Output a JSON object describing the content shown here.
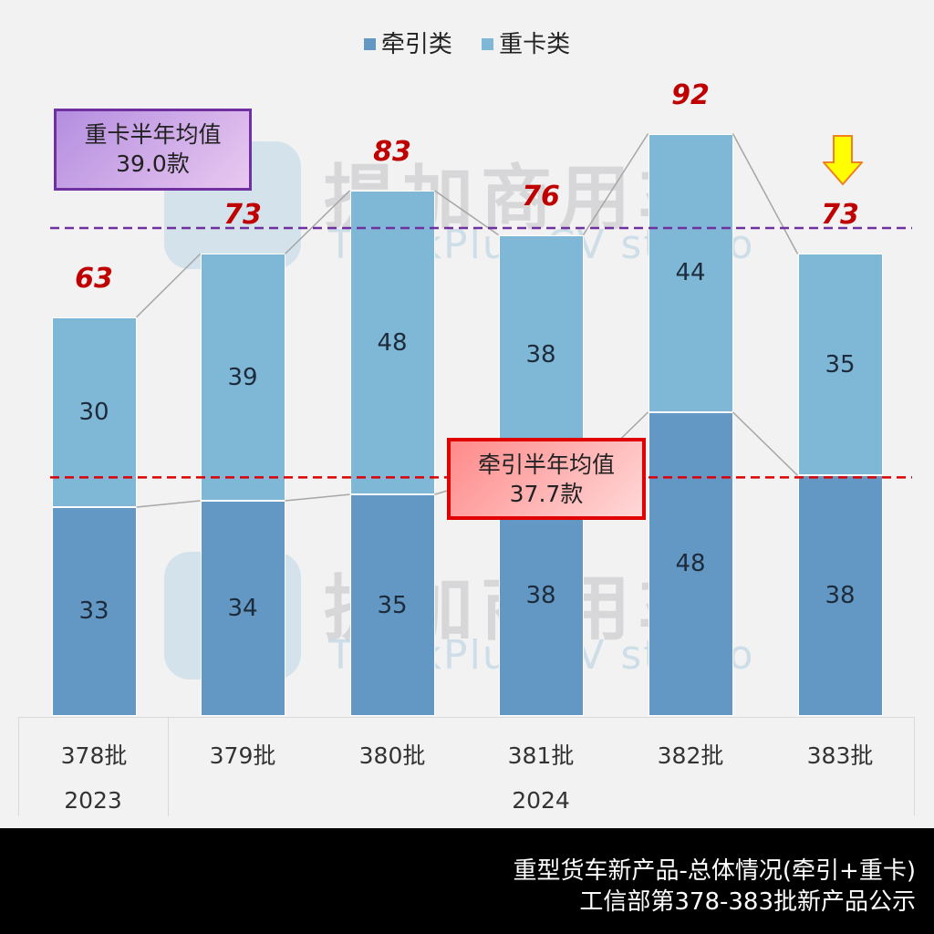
{
  "legend": [
    {
      "label": "牵引类",
      "color": "#6398c4"
    },
    {
      "label": "重卡类",
      "color": "#7fb7d6"
    }
  ],
  "watermark": {
    "cn": "提加商用车",
    "en": "TruckPlus CV studio"
  },
  "averages": {
    "truck": {
      "title": "重卡半年均值",
      "value": "39.0款",
      "color": "#7030a0"
    },
    "tractor": {
      "title": "牵引半年均值",
      "value": "37.7款",
      "color": "#e00000"
    }
  },
  "xaxis": {
    "years": [
      {
        "label": "2023"
      },
      {
        "label": "2024"
      }
    ]
  },
  "footer": {
    "line1": "重型货车新产品-总体情况(牵引+重卡)",
    "line2": "工信部第378-383批新产品公示"
  },
  "chart_data": {
    "type": "bar",
    "stacked": true,
    "categories": [
      "378批",
      "379批",
      "380批",
      "381批",
      "382批",
      "383批"
    ],
    "category_groups": [
      {
        "label": "2023",
        "categories": [
          "378批"
        ]
      },
      {
        "label": "2024",
        "categories": [
          "379批",
          "380批",
          "381批",
          "382批",
          "383批"
        ]
      }
    ],
    "series": [
      {
        "name": "牵引类",
        "values": [
          33,
          34,
          35,
          38,
          48,
          38
        ],
        "color": "#6398c4"
      },
      {
        "name": "重卡类",
        "values": [
          30,
          39,
          48,
          38,
          44,
          35
        ],
        "color": "#7fb7d6"
      }
    ],
    "totals": [
      "63",
      "73",
      "83",
      "76",
      "92",
      "73"
    ],
    "reference_lines": [
      {
        "name": "重卡半年均值",
        "value": 39.0,
        "style": "dashed",
        "color": "#7030a0"
      },
      {
        "name": "牵引半年均值",
        "value": 37.7,
        "style": "dashed",
        "color": "#e00000"
      }
    ],
    "annotations": [
      "383批 highlighted with yellow down arrow"
    ],
    "title": "重型货车新产品-总体情况(牵引+重卡)",
    "subtitle": "工信部第378-383批新产品公示",
    "legend_position": "top",
    "grid": false
  }
}
